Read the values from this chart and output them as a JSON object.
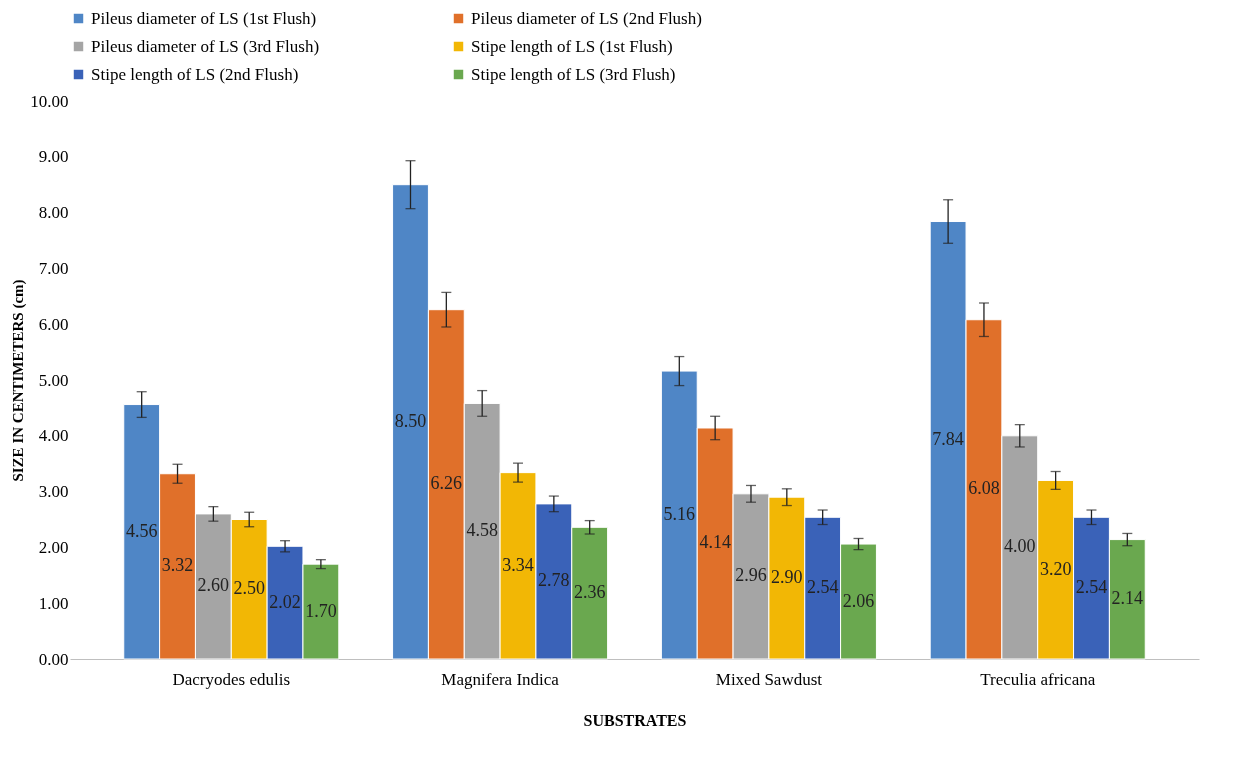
{
  "chart_data": {
    "type": "bar",
    "xlabel": "SUBSTRATES",
    "ylabel": "SIZE IN CENTIMETERS (cm)",
    "categories": [
      "Dacryodes edulis",
      "Magnifera Indica",
      "Mixed Sawdust",
      "Treculia africana"
    ],
    "series": [
      {
        "name": "Pileus diameter of LS (1st Flush)",
        "color": "#4f86c6",
        "values": [
          4.56,
          8.5,
          5.16,
          7.84
        ],
        "errors": [
          0.23,
          0.43,
          0.26,
          0.39
        ],
        "value_labels": [
          "4.56",
          "8.50",
          "5.16",
          "7.84"
        ]
      },
      {
        "name": "Pileus diameter of LS (2nd Flush)",
        "color": "#e0702a",
        "values": [
          3.32,
          6.26,
          4.14,
          6.08
        ],
        "errors": [
          0.17,
          0.31,
          0.21,
          0.3
        ],
        "value_labels": [
          "3.32",
          "6.26",
          "4.14",
          "6.08"
        ]
      },
      {
        "name": "Pileus diameter of LS (3rd Flush)",
        "color": "#a5a5a5",
        "values": [
          2.6,
          4.58,
          2.96,
          4.0
        ],
        "errors": [
          0.13,
          0.23,
          0.15,
          0.2
        ],
        "value_labels": [
          "2.60",
          "4.58",
          "2.96",
          "4.00"
        ]
      },
      {
        "name": "Stipe length of LS (1st Flush)",
        "color": "#f2b705",
        "values": [
          2.5,
          3.34,
          2.9,
          3.2
        ],
        "errors": [
          0.13,
          0.17,
          0.15,
          0.16
        ],
        "value_labels": [
          "2.50",
          "3.34",
          "2.90",
          "3.20"
        ]
      },
      {
        "name": "Stipe length of LS (2nd Flush)",
        "color": "#3a62b8",
        "values": [
          2.02,
          2.78,
          2.54,
          2.54
        ],
        "errors": [
          0.1,
          0.14,
          0.13,
          0.13
        ],
        "value_labels": [
          "2.02",
          "2.78",
          "2.54",
          "2.54"
        ]
      },
      {
        "name": "Stipe length of LS (3rd Flush)",
        "color": "#6aa84f",
        "values": [
          1.7,
          2.36,
          2.06,
          2.14
        ],
        "errors": [
          0.08,
          0.12,
          0.1,
          0.11
        ],
        "value_labels": [
          "1.70",
          "2.36",
          "2.06",
          "2.14"
        ]
      }
    ],
    "ylim": [
      0,
      10
    ],
    "yticks": [
      {
        "value": 0,
        "label": "0.00"
      },
      {
        "value": 1,
        "label": "1.00"
      },
      {
        "value": 2,
        "label": "2.00"
      },
      {
        "value": 3,
        "label": "3.00"
      },
      {
        "value": 4,
        "label": "4.00"
      },
      {
        "value": 5,
        "label": "5.00"
      },
      {
        "value": 6,
        "label": "6.00"
      },
      {
        "value": 7,
        "label": "7.00"
      },
      {
        "value": 8,
        "label": "8.00"
      },
      {
        "value": 9,
        "label": "9.00"
      },
      {
        "value": 10,
        "label": "10.00"
      }
    ],
    "grid": false,
    "legend": "top"
  }
}
